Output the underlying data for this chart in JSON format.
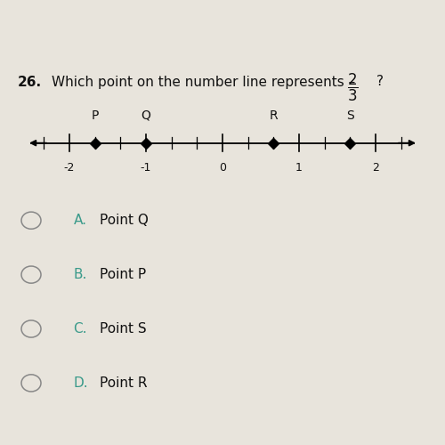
{
  "question_number": "26.",
  "question_text": "Which point on the number line represents – ",
  "fraction_numerator": "2",
  "fraction_denominator": "3",
  "question_suffix": "?",
  "number_line": {
    "x_min": -2.5,
    "x_max": 2.5,
    "tick_integers": [
      -2,
      -1,
      0,
      1,
      2
    ],
    "tick_labels": [
      "-2",
      "-1",
      "0",
      "1",
      "2"
    ],
    "points": {
      "P": -1.6667,
      "Q": -1.0,
      "R": 0.6667,
      "S": 1.6667
    }
  },
  "choices": [
    {
      "label": "A.",
      "text": "Point Q"
    },
    {
      "label": "B.",
      "text": "Point P"
    },
    {
      "label": "C.",
      "text": "Point S"
    },
    {
      "label": "D.",
      "text": "Point R"
    }
  ],
  "bg_color": "#e8e4dc",
  "header_color": "#1a237e",
  "line_color": "#000000",
  "point_color": "#000000",
  "text_color": "#111111",
  "label_color": "#3a9a8a",
  "choice_text_color": "#111111",
  "circle_color": "#888888",
  "font_size_question": 11,
  "font_size_labels": 10,
  "font_size_ticks": 9,
  "font_size_choices": 11
}
